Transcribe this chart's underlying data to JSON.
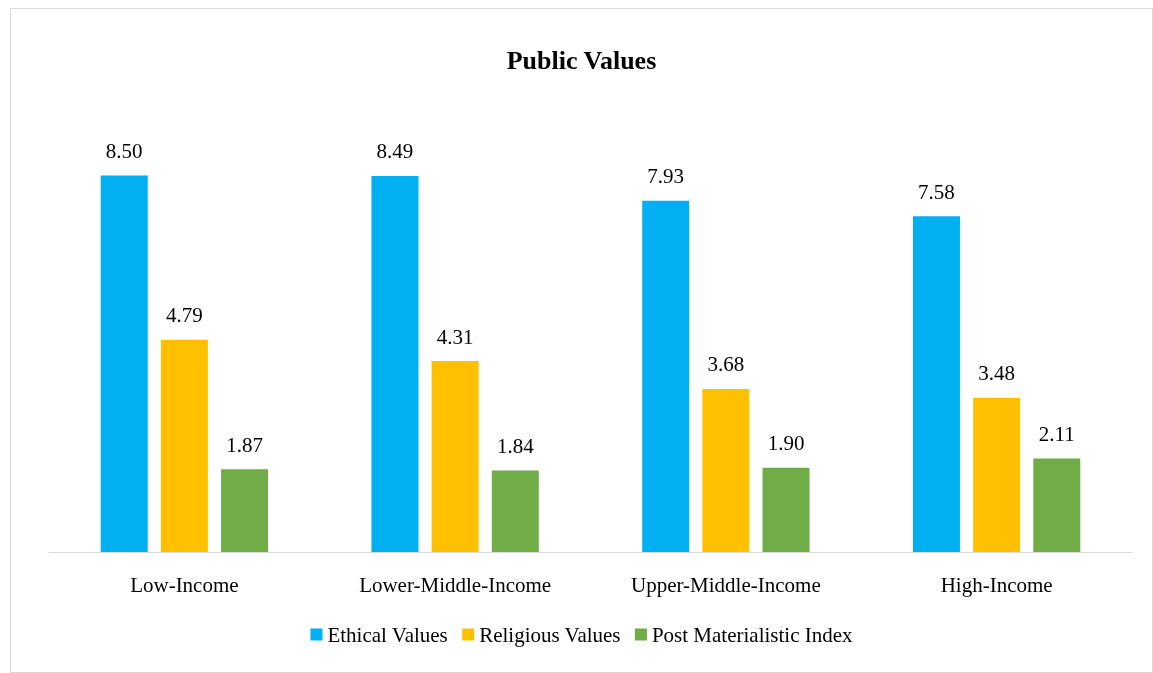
{
  "chart_data": {
    "type": "bar",
    "title": "Public Values",
    "categories": [
      "Low-Income",
      "Lower-Middle-Income",
      "Upper-Middle-Income",
      "High-Income"
    ],
    "series": [
      {
        "name": "Ethical Values",
        "color": "#00b0f0",
        "values": [
          8.5,
          8.49,
          7.93,
          7.58
        ],
        "value_labels": [
          "8.50",
          "8.49",
          "7.93",
          "7.58"
        ]
      },
      {
        "name": "Religious Values",
        "color": "#ffc000",
        "values": [
          4.79,
          4.31,
          3.68,
          3.48
        ],
        "value_labels": [
          "4.79",
          "4.31",
          "3.68",
          "3.48"
        ]
      },
      {
        "name": "Post Materialistic Index",
        "color": "#70ad47",
        "values": [
          1.87,
          1.84,
          1.9,
          2.11
        ],
        "value_labels": [
          "1.87",
          "1.84",
          "1.90",
          "2.11"
        ]
      }
    ],
    "grid": false,
    "legend": "bottom"
  }
}
